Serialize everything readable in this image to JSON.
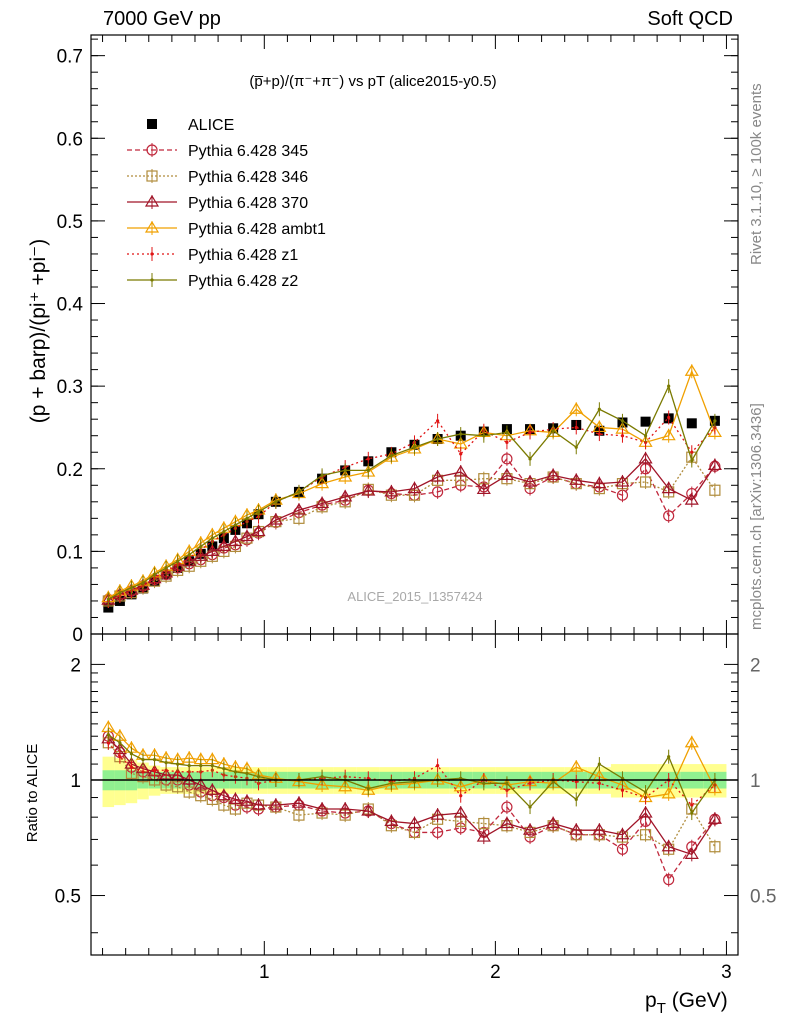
{
  "header": {
    "left": "7000 GeV pp",
    "right": "Soft QCD"
  },
  "side_labels": {
    "rivet": "Rivet 3.1.10, ≥ 100k events",
    "mcplots": "mcplots.cern.ch [arXiv:1306.3436]"
  },
  "analysis_label": "ALICE_2015_I1357424",
  "colors": {
    "ALICE": "#000000",
    "345": "#c0283c",
    "346": "#b08c3c",
    "370": "#a01428",
    "ambt1": "#f0a000",
    "z1": "#e01414",
    "z2": "#7a7a00",
    "band_inner": "#90f090",
    "band_outer": "#ffff90"
  },
  "chart_data": [
    {
      "type": "scatter",
      "title": "(p̅+p)/(π⁻+π⁻) vs pT (alice2015-y0.5)",
      "ylabel": "(p + barp)/(pi⁺ +pi⁻)",
      "xlabel": "",
      "xlim": [
        0.25,
        3.05
      ],
      "ylim": [
        0,
        0.725
      ],
      "y_ticks": [
        "0",
        "0.1",
        "0.2",
        "0.3",
        "0.4",
        "0.5",
        "0.6",
        "0.7"
      ],
      "x": [
        0.325,
        0.375,
        0.425,
        0.475,
        0.525,
        0.575,
        0.625,
        0.675,
        0.725,
        0.775,
        0.825,
        0.875,
        0.925,
        0.975,
        1.05,
        1.15,
        1.25,
        1.35,
        1.45,
        1.55,
        1.65,
        1.75,
        1.85,
        1.95,
        2.05,
        2.15,
        2.25,
        2.35,
        2.45,
        2.55,
        2.65,
        2.75,
        2.85,
        2.95
      ],
      "series": [
        {
          "name": "ALICE",
          "key": "ALICE",
          "style": "data",
          "values": [
            0.032,
            0.04,
            0.048,
            0.055,
            0.064,
            0.072,
            0.08,
            0.088,
            0.097,
            0.106,
            0.116,
            0.126,
            0.134,
            0.145,
            0.16,
            0.172,
            0.188,
            0.198,
            0.209,
            0.22,
            0.229,
            0.236,
            0.24,
            0.245,
            0.248,
            0.248,
            0.249,
            0.253,
            0.246,
            0.256,
            0.257,
            0.261,
            0.255,
            0.258
          ]
        },
        {
          "name": "Pythia 6.428 345",
          "key": "345",
          "style": "circle",
          "dash": "5,3",
          "values": [
            0.042,
            0.047,
            0.052,
            0.058,
            0.066,
            0.072,
            0.08,
            0.085,
            0.09,
            0.096,
            0.104,
            0.108,
            0.114,
            0.122,
            0.135,
            0.147,
            0.156,
            0.162,
            0.174,
            0.17,
            0.168,
            0.172,
            0.18,
            0.178,
            0.212,
            0.176,
            0.19,
            0.182,
            0.178,
            0.168,
            0.2,
            0.143,
            0.17,
            0.203
          ]
        },
        {
          "name": "Pythia 6.428 346",
          "key": "346",
          "style": "square",
          "dash": "2,2",
          "values": [
            0.04,
            0.046,
            0.05,
            0.056,
            0.064,
            0.07,
            0.077,
            0.082,
            0.088,
            0.094,
            0.1,
            0.106,
            0.116,
            0.124,
            0.136,
            0.14,
            0.154,
            0.16,
            0.175,
            0.168,
            0.168,
            0.186,
            0.186,
            0.188,
            0.188,
            0.182,
            0.19,
            0.182,
            0.176,
            0.182,
            0.184,
            0.172,
            0.214,
            0.174
          ]
        },
        {
          "name": "Pythia 6.428 370",
          "key": "370",
          "style": "triangle",
          "dash": "",
          "values": [
            0.041,
            0.048,
            0.053,
            0.059,
            0.067,
            0.074,
            0.082,
            0.088,
            0.094,
            0.1,
            0.106,
            0.112,
            0.118,
            0.124,
            0.138,
            0.15,
            0.158,
            0.166,
            0.173,
            0.172,
            0.176,
            0.19,
            0.196,
            0.175,
            0.192,
            0.184,
            0.192,
            0.186,
            0.182,
            0.184,
            0.212,
            0.176,
            0.162,
            0.204
          ]
        },
        {
          "name": "Pythia 6.428 ambt1",
          "key": "ambt1",
          "style": "triangle",
          "dash": "",
          "values": [
            0.044,
            0.052,
            0.058,
            0.064,
            0.074,
            0.082,
            0.09,
            0.1,
            0.11,
            0.12,
            0.128,
            0.136,
            0.144,
            0.15,
            0.162,
            0.17,
            0.182,
            0.19,
            0.196,
            0.214,
            0.224,
            0.236,
            0.23,
            0.244,
            0.24,
            0.246,
            0.244,
            0.272,
            0.25,
            0.248,
            0.232,
            0.24,
            0.318,
            0.244
          ]
        },
        {
          "name": "Pythia 6.428 z1",
          "key": "z1",
          "style": "dot",
          "dash": "2,3",
          "values": [
            0.04,
            0.046,
            0.052,
            0.058,
            0.068,
            0.076,
            0.084,
            0.092,
            0.102,
            0.112,
            0.12,
            0.128,
            0.136,
            0.142,
            0.16,
            0.172,
            0.19,
            0.202,
            0.212,
            0.218,
            0.232,
            0.258,
            0.218,
            0.246,
            0.232,
            0.244,
            0.248,
            0.25,
            0.242,
            0.24,
            0.232,
            0.262,
            0.22,
            0.25
          ]
        },
        {
          "name": "Pythia 6.428 z2",
          "key": "z2",
          "style": "dot",
          "dash": "",
          "values": [
            0.042,
            0.05,
            0.056,
            0.062,
            0.072,
            0.08,
            0.088,
            0.096,
            0.106,
            0.116,
            0.124,
            0.132,
            0.14,
            0.148,
            0.16,
            0.172,
            0.192,
            0.198,
            0.198,
            0.216,
            0.226,
            0.236,
            0.242,
            0.24,
            0.244,
            0.212,
            0.246,
            0.226,
            0.272,
            0.258,
            0.24,
            0.3,
            0.21,
            0.258
          ]
        }
      ]
    },
    {
      "type": "scatter",
      "title": "",
      "ylabel": "Ratio to ALICE",
      "xlabel": "p_T (GeV)",
      "xlim": [
        0.25,
        3.05
      ],
      "ylim": [
        0.35,
        2.4
      ],
      "y_ticks": [
        "0.5",
        "1",
        "2"
      ],
      "x_ticks": [
        "1",
        "2",
        "3"
      ],
      "band_inner": [
        0.06,
        0.06,
        0.06,
        0.05,
        0.05,
        0.05,
        0.05,
        0.05,
        0.05,
        0.05,
        0.05,
        0.05,
        0.05,
        0.05,
        0.05,
        0.05,
        0.05,
        0.05,
        0.05,
        0.05,
        0.05,
        0.05,
        0.05,
        0.05,
        0.05,
        0.05,
        0.05,
        0.05,
        0.05,
        0.05,
        0.05,
        0.05,
        0.05,
        0.05
      ],
      "band_outer": [
        0.15,
        0.14,
        0.13,
        0.11,
        0.09,
        0.08,
        0.08,
        0.08,
        0.08,
        0.08,
        0.08,
        0.08,
        0.08,
        0.08,
        0.08,
        0.08,
        0.08,
        0.08,
        0.08,
        0.08,
        0.08,
        0.08,
        0.08,
        0.08,
        0.08,
        0.08,
        0.08,
        0.08,
        0.08,
        0.1,
        0.1,
        0.1,
        0.1,
        0.1
      ],
      "series": [
        {
          "key": "345",
          "style": "circle",
          "dash": "5,3",
          "values": [
            1.3,
            1.18,
            1.08,
            1.05,
            1.03,
            1.0,
            1.0,
            0.97,
            0.93,
            0.91,
            0.9,
            0.86,
            0.85,
            0.84,
            0.85,
            0.86,
            0.83,
            0.82,
            0.83,
            0.77,
            0.73,
            0.73,
            0.75,
            0.73,
            0.85,
            0.71,
            0.76,
            0.72,
            0.72,
            0.66,
            0.78,
            0.55,
            0.67,
            0.79
          ]
        },
        {
          "key": "346",
          "style": "square",
          "dash": "2,2",
          "values": [
            1.25,
            1.15,
            1.04,
            1.02,
            1.0,
            0.97,
            0.96,
            0.93,
            0.91,
            0.89,
            0.86,
            0.84,
            0.87,
            0.86,
            0.85,
            0.81,
            0.82,
            0.81,
            0.84,
            0.76,
            0.73,
            0.79,
            0.78,
            0.77,
            0.76,
            0.73,
            0.76,
            0.72,
            0.72,
            0.71,
            0.72,
            0.66,
            0.84,
            0.67
          ]
        },
        {
          "key": "370",
          "style": "triangle",
          "dash": "",
          "values": [
            1.28,
            1.2,
            1.1,
            1.07,
            1.05,
            1.03,
            1.03,
            1.0,
            0.97,
            0.94,
            0.91,
            0.89,
            0.88,
            0.86,
            0.86,
            0.87,
            0.84,
            0.84,
            0.83,
            0.78,
            0.77,
            0.81,
            0.82,
            0.71,
            0.77,
            0.74,
            0.77,
            0.74,
            0.74,
            0.72,
            0.82,
            0.67,
            0.64,
            0.79
          ]
        },
        {
          "key": "ambt1",
          "style": "triangle",
          "dash": "",
          "values": [
            1.37,
            1.3,
            1.21,
            1.16,
            1.16,
            1.14,
            1.13,
            1.14,
            1.13,
            1.13,
            1.1,
            1.08,
            1.07,
            1.03,
            1.01,
            0.99,
            0.97,
            0.96,
            0.94,
            0.97,
            0.98,
            1.0,
            0.96,
            1.0,
            0.97,
            0.99,
            0.98,
            1.08,
            1.02,
            0.97,
            0.9,
            0.92,
            1.25,
            0.95
          ]
        },
        {
          "key": "z1",
          "style": "dot",
          "dash": "2,3",
          "values": [
            1.25,
            1.15,
            1.08,
            1.05,
            1.06,
            1.06,
            1.05,
            1.05,
            1.05,
            1.06,
            1.03,
            1.02,
            1.01,
            0.98,
            1.0,
            1.0,
            1.01,
            1.02,
            1.01,
            0.99,
            1.01,
            1.09,
            0.91,
            1.0,
            0.94,
            0.98,
            1.0,
            0.99,
            0.98,
            0.94,
            0.9,
            1.0,
            0.86,
            0.97
          ]
        },
        {
          "key": "z2",
          "style": "dot",
          "dash": "",
          "values": [
            1.31,
            1.25,
            1.17,
            1.13,
            1.13,
            1.11,
            1.1,
            1.09,
            1.09,
            1.09,
            1.07,
            1.05,
            1.04,
            1.02,
            1.0,
            1.0,
            1.02,
            1.0,
            0.95,
            0.98,
            0.99,
            1.0,
            1.01,
            0.98,
            0.98,
            0.85,
            0.99,
            0.89,
            1.1,
            1.01,
            0.93,
            1.15,
            0.82,
            1.0
          ]
        }
      ]
    }
  ]
}
